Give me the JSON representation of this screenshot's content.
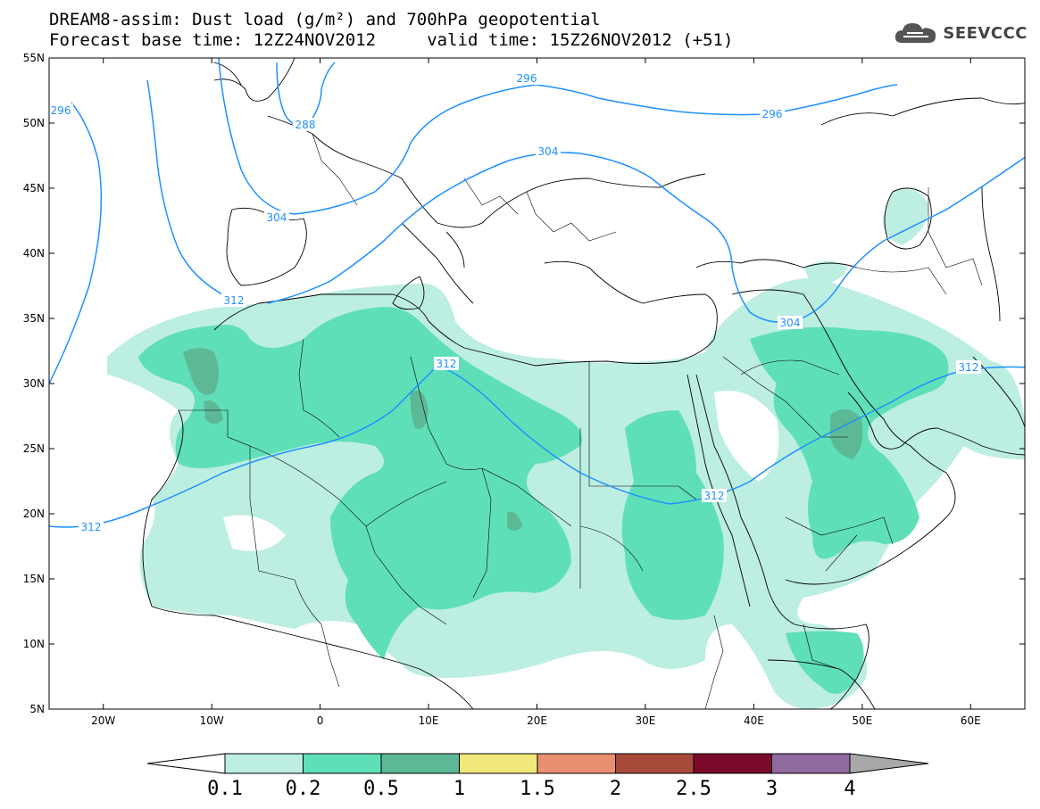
{
  "header": {
    "title_line1": "DREAM8-assim: Dust load (g/m²) and 700hPa geopotential",
    "title_line2": "Forecast base time: 12Z24NOV2012     valid time: 15Z26NOV2012 (+51)",
    "logo_text": "SEEVCCC",
    "logo_icon": "cloud-icon"
  },
  "map": {
    "lon_range": [
      -25,
      65
    ],
    "lat_range": [
      5,
      55
    ],
    "lat_ticks": [
      "55N",
      "50N",
      "45N",
      "40N",
      "35N",
      "30N",
      "25N",
      "20N",
      "15N",
      "10N",
      "5N"
    ],
    "lon_ticks": [
      "20W",
      "10W",
      "0",
      "10E",
      "20E",
      "30E",
      "40E",
      "50E",
      "60E"
    ],
    "contour_color": "#1e90ff",
    "contour_labels": [
      "296",
      "296",
      "304",
      "288",
      "296",
      "312",
      "304",
      "304",
      "312",
      "312",
      "312",
      "312"
    ]
  },
  "colorbar": {
    "colors": [
      "#ffffff",
      "#bdeee2",
      "#5fdfb8",
      "#5cb895",
      "#f0e87a",
      "#e89070",
      "#a84a3a",
      "#7a0a2a",
      "#8e6a9e",
      "#a8a8a8"
    ],
    "labels": [
      "0.1",
      "0.2",
      "0.5",
      "1",
      "1.5",
      "2",
      "2.5",
      "3",
      "4"
    ]
  }
}
